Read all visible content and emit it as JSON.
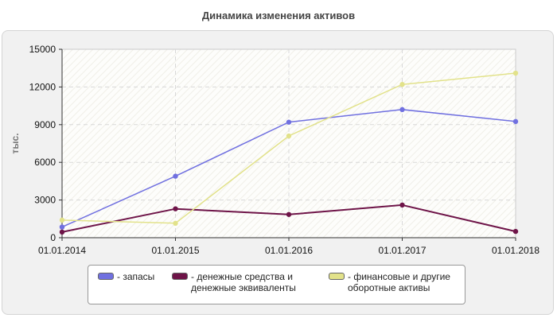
{
  "chart_data": {
    "type": "line",
    "title": "Динамика изменения активов",
    "ylabel": "тыс.",
    "xlabel": "",
    "categories": [
      "01.01.2014",
      "01.01.2015",
      "01.01.2016",
      "01.01.2017",
      "01.01.2018"
    ],
    "ylim": [
      0,
      15000
    ],
    "yticks": [
      "15000",
      "12000",
      "9000",
      "6000",
      "3000",
      "0"
    ],
    "grid": true,
    "legend": "bottom",
    "series": [
      {
        "name": "- запасы",
        "color": "#7070e0",
        "values": [
          850,
          4900,
          9200,
          10200,
          9250
        ]
      },
      {
        "name": "- денежные средства и денежные эквиваленты",
        "name_lines": [
          "- денежные средства и",
          "денежные эквиваленты"
        ],
        "color": "#6e1448",
        "values": [
          450,
          2300,
          1850,
          2600,
          500
        ]
      },
      {
        "name": "- финансовые и другие оборотные активы",
        "name_lines": [
          "- финансовые и другие",
          "оборотные активы"
        ],
        "color": "#e2e28a",
        "values": [
          1400,
          1150,
          8100,
          12200,
          13100
        ]
      }
    ]
  }
}
